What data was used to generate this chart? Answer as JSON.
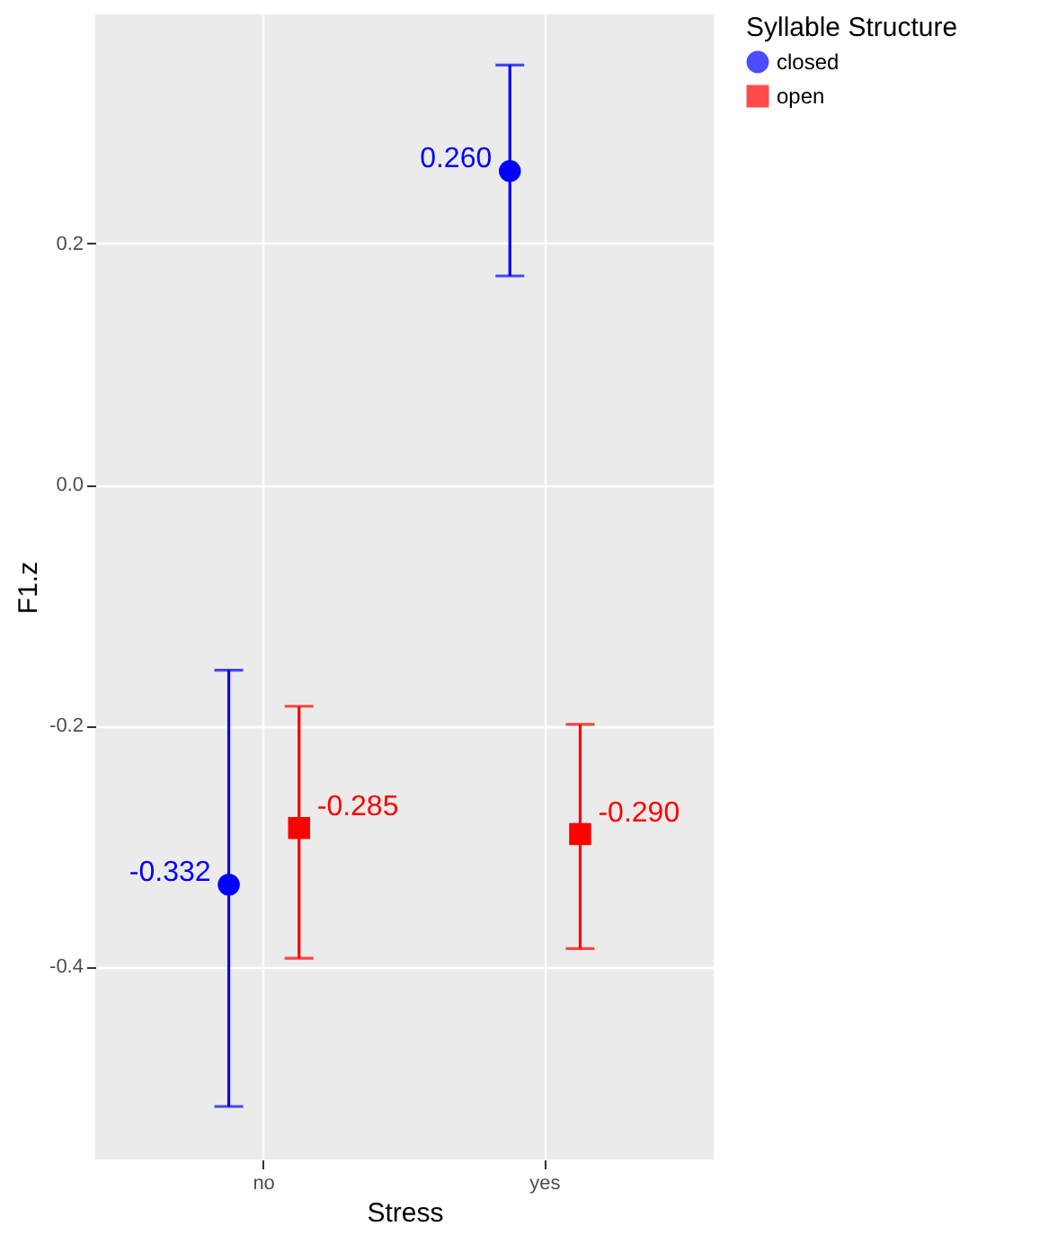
{
  "chart_data": {
    "type": "scatter",
    "xlabel": "Stress",
    "ylabel": "F1.z",
    "legend_title": "Syllable Structure",
    "categories": [
      "no",
      "yes"
    ],
    "series": [
      {
        "name": "closed",
        "color": "#0000ff",
        "marker": "circle",
        "values": [
          -0.332,
          0.26
        ],
        "errors": [
          [
            -0.516,
            -0.154
          ],
          [
            0.173,
            0.348
          ]
        ],
        "value_labels": [
          "-0.332",
          "0.260"
        ]
      },
      {
        "name": "open",
        "color": "#ff0000",
        "marker": "square",
        "values": [
          -0.285,
          -0.29
        ],
        "errors": [
          [
            -0.393,
            -0.184
          ],
          [
            -0.385,
            -0.199
          ]
        ],
        "value_labels": [
          "-0.285",
          "-0.290"
        ]
      }
    ],
    "ylim": [
      -0.56,
      0.39
    ],
    "yticks": [
      -0.4,
      -0.2,
      {
        "value": 0,
        "label": "0.0"
      },
      0.2
    ],
    "grid": true,
    "legend": "right"
  }
}
